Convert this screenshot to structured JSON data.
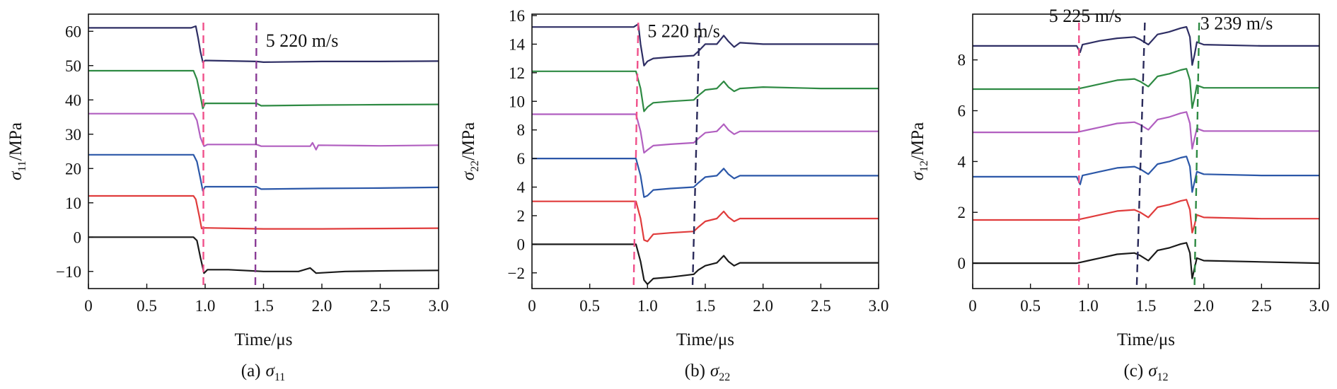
{
  "figure": {
    "series_colors": [
      "#1a1a1a",
      "#e03c3c",
      "#2b57a8",
      "#b15fc0",
      "#2e8a43",
      "#2e2e64"
    ],
    "marker_colors": {
      "pink": "#f0508a",
      "purple": "#8a3c96",
      "navy": "#2a2a5a",
      "green": "#2e8a43"
    }
  },
  "chart_data": [
    {
      "type": "line",
      "id": "a",
      "caption_prefix": "(a)",
      "caption_symbol": "σ",
      "caption_sub": "11",
      "xlabel": "Time/μs",
      "ylabel_symbol": "σ",
      "ylabel_sub": "11",
      "ylabel_suffix": "/MPa",
      "xlim": [
        0,
        3.0
      ],
      "ylim": [
        -15,
        65
      ],
      "xticks": [
        0,
        0.5,
        1.0,
        1.5,
        2.0,
        2.5,
        3.0
      ],
      "xtick_labels": [
        "0",
        "0.5",
        "1.0",
        "1.5",
        "2.0",
        "2.5",
        "3.0"
      ],
      "yticks": [
        -10,
        0,
        10,
        20,
        30,
        40,
        50,
        60
      ],
      "ytick_labels": [
        "−10",
        "0",
        "10",
        "20",
        "30",
        "40",
        "50",
        "60"
      ],
      "series": [
        {
          "name": "trace-1",
          "color_index": 0,
          "x": [
            0,
            0.9,
            0.93,
            0.96,
            0.99,
            1.02,
            1.2,
            1.5,
            1.8,
            1.9,
            1.95,
            2.2,
            2.6,
            3.0
          ],
          "y": [
            0,
            0,
            -1,
            -6,
            -10.5,
            -9.5,
            -9.5,
            -10,
            -10,
            -9,
            -10.5,
            -10,
            -9.8,
            -9.7
          ]
        },
        {
          "name": "trace-2",
          "color_index": 1,
          "x": [
            0,
            0.9,
            0.92,
            0.95,
            0.97,
            1.0,
            1.5,
            2.0,
            2.5,
            3.0
          ],
          "y": [
            12,
            12,
            11,
            6,
            2.5,
            2.7,
            2.4,
            2.4,
            2.5,
            2.6
          ]
        },
        {
          "name": "trace-3",
          "color_index": 2,
          "x": [
            0,
            0.9,
            0.93,
            0.96,
            0.98,
            1.0,
            1.44,
            1.48,
            2.0,
            2.5,
            3.0
          ],
          "y": [
            24,
            24,
            22,
            17,
            13.5,
            14.7,
            14.7,
            14.0,
            14.2,
            14.3,
            14.5
          ]
        },
        {
          "name": "trace-4",
          "color_index": 3,
          "x": [
            0,
            0.9,
            0.93,
            0.96,
            0.99,
            1.02,
            1.44,
            1.48,
            1.9,
            1.92,
            1.95,
            1.97,
            2.5,
            3.0
          ],
          "y": [
            36,
            36,
            34,
            29,
            26.5,
            27,
            27,
            26.5,
            26.5,
            27.5,
            25.5,
            26.8,
            26.6,
            26.8
          ]
        },
        {
          "name": "trace-5",
          "color_index": 4,
          "x": [
            0,
            0.9,
            0.93,
            0.96,
            0.98,
            1.0,
            1.44,
            1.48,
            2.0,
            2.5,
            3.0
          ],
          "y": [
            48.5,
            48.5,
            46,
            41,
            37.5,
            39,
            39,
            38.3,
            38.5,
            38.6,
            38.7
          ]
        },
        {
          "name": "trace-6",
          "color_index": 5,
          "x": [
            0,
            0.88,
            0.92,
            0.94,
            0.96,
            0.98,
            1.0,
            1.44,
            1.5,
            2.0,
            2.5,
            3.0
          ],
          "y": [
            61,
            61,
            61.5,
            58,
            54,
            51,
            51.5,
            51.2,
            51,
            51.2,
            51.2,
            51.3
          ]
        }
      ],
      "markers": [
        {
          "name": "wave-front-1",
          "color": "pink",
          "x_top": 0.985,
          "x_bottom": 0.985
        },
        {
          "name": "wave-front-2",
          "color": "purple",
          "x_top": 1.44,
          "x_bottom": 1.43
        }
      ],
      "annotations": [
        {
          "name": "speed-label",
          "text": "5 220 m/s",
          "x": 1.52,
          "y": 55.5
        }
      ]
    },
    {
      "type": "line",
      "id": "b",
      "caption_prefix": "(b)",
      "caption_symbol": "σ",
      "caption_sub": "22",
      "xlabel": "Time/μs",
      "ylabel_symbol": "σ",
      "ylabel_sub": "22",
      "ylabel_suffix": "/MPa",
      "xlim": [
        0,
        3.0
      ],
      "ylim": [
        -3.1,
        16.1
      ],
      "xticks": [
        0,
        0.5,
        1.0,
        1.5,
        2.0,
        2.5,
        3.0
      ],
      "xtick_labels": [
        "0",
        "0.5",
        "1.0",
        "1.5",
        "2.0",
        "2.5",
        "3.0"
      ],
      "yticks": [
        -2,
        0,
        2,
        4,
        6,
        8,
        10,
        12,
        14,
        16
      ],
      "ytick_labels": [
        "−2",
        "0",
        "2",
        "4",
        "6",
        "8",
        "10",
        "12",
        "14",
        "16"
      ],
      "series": [
        {
          "name": "trace-1",
          "color_index": 0,
          "x": [
            0,
            0.9,
            0.94,
            0.97,
            1.0,
            1.05,
            1.2,
            1.4,
            1.44,
            1.5,
            1.6,
            1.66,
            1.7,
            1.75,
            1.8,
            2.0,
            2.5,
            3.0
          ],
          "y": [
            0,
            0,
            -1.2,
            -2.5,
            -2.8,
            -2.4,
            -2.3,
            -2.1,
            -1.8,
            -1.5,
            -1.3,
            -0.8,
            -1.2,
            -1.5,
            -1.3,
            -1.3,
            -1.3,
            -1.3
          ]
        },
        {
          "name": "trace-2",
          "color_index": 1,
          "x": [
            0,
            0.9,
            0.94,
            0.97,
            1.0,
            1.05,
            1.2,
            1.4,
            1.44,
            1.5,
            1.6,
            1.66,
            1.7,
            1.75,
            1.8,
            2.0,
            2.5,
            3.0
          ],
          "y": [
            3,
            3,
            1.8,
            0.3,
            0.2,
            0.7,
            0.8,
            0.9,
            1.2,
            1.6,
            1.8,
            2.3,
            1.9,
            1.6,
            1.8,
            1.8,
            1.8,
            1.8
          ]
        },
        {
          "name": "trace-3",
          "color_index": 2,
          "x": [
            0,
            0.9,
            0.94,
            0.97,
            1.0,
            1.05,
            1.2,
            1.4,
            1.44,
            1.5,
            1.6,
            1.66,
            1.7,
            1.75,
            1.8,
            2.0,
            2.5,
            3.0
          ],
          "y": [
            6,
            6,
            4.8,
            3.3,
            3.4,
            3.8,
            3.9,
            4.0,
            4.3,
            4.7,
            4.8,
            5.3,
            4.9,
            4.6,
            4.8,
            4.8,
            4.8,
            4.8
          ]
        },
        {
          "name": "trace-4",
          "color_index": 3,
          "x": [
            0,
            0.9,
            0.94,
            0.97,
            1.0,
            1.05,
            1.2,
            1.4,
            1.44,
            1.5,
            1.6,
            1.66,
            1.7,
            1.75,
            1.8,
            2.0,
            2.5,
            3.0
          ],
          "y": [
            9.1,
            9.1,
            7.9,
            6.4,
            6.6,
            6.9,
            7.0,
            7.1,
            7.4,
            7.8,
            7.9,
            8.4,
            8.0,
            7.7,
            7.9,
            7.9,
            7.9,
            7.9
          ]
        },
        {
          "name": "trace-5",
          "color_index": 4,
          "x": [
            0,
            0.9,
            0.94,
            0.97,
            1.0,
            1.05,
            1.2,
            1.4,
            1.44,
            1.5,
            1.6,
            1.66,
            1.7,
            1.75,
            1.8,
            2.0,
            2.5,
            3.0
          ],
          "y": [
            12.1,
            12.1,
            10.9,
            9.3,
            9.6,
            9.9,
            10.0,
            10.1,
            10.4,
            10.8,
            10.9,
            11.4,
            11.0,
            10.7,
            10.9,
            11.0,
            10.9,
            10.9
          ]
        },
        {
          "name": "trace-6",
          "color_index": 5,
          "x": [
            0,
            0.88,
            0.92,
            0.94,
            0.97,
            1.0,
            1.05,
            1.2,
            1.4,
            1.44,
            1.5,
            1.6,
            1.66,
            1.7,
            1.75,
            1.8,
            2.0,
            2.5,
            3.0
          ],
          "y": [
            15.2,
            15.2,
            15.4,
            14.0,
            12.5,
            12.8,
            13.0,
            13.1,
            13.2,
            13.5,
            14.0,
            14.0,
            14.6,
            14.2,
            13.8,
            14.1,
            14.0,
            14.0,
            14.0
          ]
        }
      ],
      "markers": [
        {
          "name": "wave-front-1",
          "color": "pink",
          "x_top": 0.92,
          "x_bottom": 0.88
        },
        {
          "name": "wave-front-2",
          "color": "navy",
          "x_top": 1.45,
          "x_bottom": 1.39
        }
      ],
      "annotations": [
        {
          "name": "speed-label",
          "text": "5 220 m/s",
          "x": 1.0,
          "y": 14.5
        }
      ]
    },
    {
      "type": "line",
      "id": "c",
      "caption_prefix": "(c)",
      "caption_symbol": "σ",
      "caption_sub": "12",
      "xlabel": "Time/μs",
      "ylabel_symbol": "σ",
      "ylabel_sub": "12",
      "ylabel_suffix": "/MPa",
      "xlim": [
        0,
        3.0
      ],
      "ylim": [
        -1.0,
        9.8
      ],
      "xticks": [
        0,
        0.5,
        1.0,
        1.5,
        2.0,
        2.5,
        3.0
      ],
      "xtick_labels": [
        "0",
        "0.5",
        "1.0",
        "1.5",
        "2.0",
        "2.5",
        "3.0"
      ],
      "yticks": [
        0,
        2,
        4,
        6,
        8
      ],
      "ytick_labels": [
        "0",
        "2",
        "4",
        "6",
        "8"
      ],
      "series": [
        {
          "name": "trace-1",
          "color_index": 0,
          "x": [
            0,
            0.9,
            0.95,
            1.0,
            1.1,
            1.25,
            1.4,
            1.45,
            1.52,
            1.6,
            1.7,
            1.8,
            1.85,
            1.88,
            1.9,
            1.92,
            1.94,
            2.0,
            2.5,
            3.0
          ],
          "y": [
            0,
            0,
            0.05,
            0.1,
            0.2,
            0.35,
            0.4,
            0.3,
            0.1,
            0.5,
            0.6,
            0.75,
            0.8,
            0.4,
            -0.6,
            -0.2,
            0.2,
            0.1,
            0.05,
            0.0
          ]
        },
        {
          "name": "trace-2",
          "color_index": 1,
          "x": [
            0,
            0.9,
            0.95,
            1.0,
            1.1,
            1.25,
            1.4,
            1.45,
            1.52,
            1.6,
            1.7,
            1.8,
            1.85,
            1.88,
            1.9,
            1.92,
            1.94,
            2.0,
            2.5,
            3.0
          ],
          "y": [
            1.7,
            1.7,
            1.75,
            1.8,
            1.9,
            2.05,
            2.1,
            2.0,
            1.8,
            2.2,
            2.3,
            2.45,
            2.5,
            2.1,
            1.2,
            1.5,
            1.9,
            1.8,
            1.75,
            1.75
          ]
        },
        {
          "name": "trace-3",
          "color_index": 2,
          "x": [
            0,
            0.9,
            0.93,
            0.95,
            1.0,
            1.1,
            1.25,
            1.4,
            1.45,
            1.52,
            1.6,
            1.7,
            1.8,
            1.85,
            1.88,
            1.9,
            1.92,
            1.94,
            2.0,
            2.5,
            3.0
          ],
          "y": [
            3.4,
            3.4,
            3.1,
            3.45,
            3.5,
            3.6,
            3.75,
            3.8,
            3.7,
            3.5,
            3.9,
            4.0,
            4.15,
            4.2,
            3.8,
            2.8,
            3.2,
            3.6,
            3.5,
            3.45,
            3.45
          ]
        },
        {
          "name": "trace-4",
          "color_index": 3,
          "x": [
            0,
            0.9,
            0.95,
            1.0,
            1.1,
            1.25,
            1.4,
            1.45,
            1.52,
            1.6,
            1.7,
            1.8,
            1.85,
            1.88,
            1.9,
            1.92,
            1.94,
            2.0,
            2.5,
            3.0
          ],
          "y": [
            5.15,
            5.15,
            5.2,
            5.25,
            5.35,
            5.5,
            5.55,
            5.45,
            5.25,
            5.65,
            5.75,
            5.9,
            5.95,
            5.5,
            4.5,
            4.9,
            5.3,
            5.2,
            5.2,
            5.2
          ]
        },
        {
          "name": "trace-5",
          "color_index": 4,
          "x": [
            0,
            0.9,
            0.95,
            1.0,
            1.1,
            1.25,
            1.4,
            1.45,
            1.52,
            1.6,
            1.7,
            1.8,
            1.85,
            1.88,
            1.9,
            1.92,
            1.94,
            2.0,
            2.5,
            3.0
          ],
          "y": [
            6.85,
            6.85,
            6.9,
            6.95,
            7.05,
            7.2,
            7.25,
            7.15,
            6.95,
            7.35,
            7.45,
            7.6,
            7.65,
            7.2,
            6.1,
            6.5,
            7.0,
            6.9,
            6.9,
            6.9
          ]
        },
        {
          "name": "trace-6",
          "color_index": 5,
          "x": [
            0,
            0.9,
            0.93,
            0.95,
            1.0,
            1.1,
            1.25,
            1.4,
            1.45,
            1.52,
            1.6,
            1.7,
            1.8,
            1.85,
            1.88,
            1.9,
            1.92,
            1.94,
            2.0,
            2.5,
            3.0
          ],
          "y": [
            8.55,
            8.55,
            8.3,
            8.6,
            8.65,
            8.75,
            8.85,
            8.9,
            8.8,
            8.6,
            9.0,
            9.1,
            9.25,
            9.3,
            8.9,
            7.8,
            8.2,
            8.7,
            8.6,
            8.55,
            8.55
          ]
        }
      ],
      "markers": [
        {
          "name": "wave-front-1",
          "color": "pink",
          "x_top": 0.92,
          "x_bottom": 0.92
        },
        {
          "name": "wave-front-2",
          "color": "navy",
          "x_top": 1.49,
          "x_bottom": 1.42
        },
        {
          "name": "wave-front-3",
          "color": "green",
          "x_top": 1.96,
          "x_bottom": 1.92
        }
      ],
      "annotations": [
        {
          "name": "speed-label-1",
          "text": "5 225 m/s",
          "x": 0.66,
          "y": 9.5
        },
        {
          "name": "speed-label-2",
          "text": "3 239 m/s",
          "x": 1.97,
          "y": 9.2
        }
      ]
    }
  ]
}
